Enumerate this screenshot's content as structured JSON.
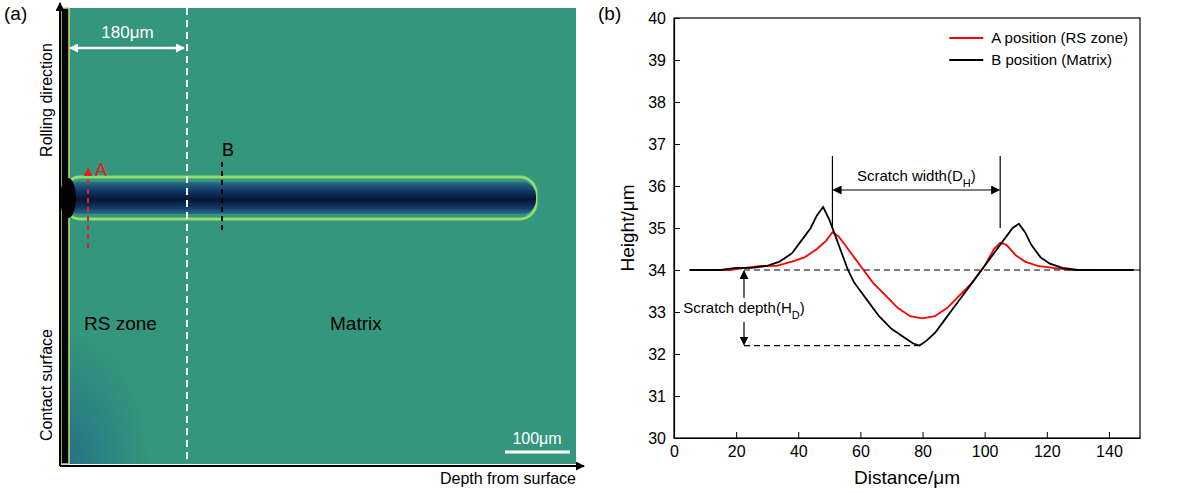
{
  "image_panel": {
    "panel_label": "(a)",
    "y_axis_labels": [
      "Rolling direction",
      "Contact surface"
    ],
    "x_axis_label": "Depth from surface",
    "dimension_label": "180μm",
    "regions": [
      "RS zone",
      "Matrix"
    ],
    "positions": [
      {
        "name": "A",
        "color": "#e02020"
      },
      {
        "name": "B",
        "color": "#000000"
      }
    ],
    "scale_bar": "100μm"
  },
  "chart_data": {
    "type": "line",
    "panel_label": "(b)",
    "x_label": "Distance/μm",
    "y_label": "Height/μm",
    "xlim": [
      0,
      150
    ],
    "xticks": [
      0,
      20,
      40,
      60,
      80,
      100,
      120,
      140
    ],
    "ylim": [
      30,
      40
    ],
    "yticks": [
      30,
      31,
      32,
      33,
      34,
      35,
      36,
      37,
      38,
      39,
      40
    ],
    "grid": false,
    "legend": "upper right",
    "series": [
      {
        "name": "A position (RS zone)",
        "color": "#ff0000",
        "x": [
          13,
          18,
          23,
          28,
          33,
          38,
          42,
          46,
          49,
          51,
          53,
          55,
          58,
          61,
          64,
          68,
          72,
          76,
          80,
          84,
          88,
          92,
          96,
          100,
          103,
          105,
          107,
          110,
          113,
          117,
          122,
          128,
          135,
          142,
          148
        ],
        "values": [
          34.0,
          34.0,
          34.05,
          34.1,
          34.1,
          34.2,
          34.3,
          34.5,
          34.7,
          34.9,
          34.8,
          34.6,
          34.3,
          34.0,
          33.7,
          33.4,
          33.1,
          32.9,
          32.85,
          32.9,
          33.1,
          33.4,
          33.7,
          34.1,
          34.5,
          34.65,
          34.6,
          34.35,
          34.2,
          34.1,
          34.05,
          34.0,
          34.0,
          34.0,
          34.0
        ]
      },
      {
        "name": "B position (Matrix)",
        "color": "#000000",
        "x": [
          5,
          10,
          15,
          20,
          25,
          30,
          34,
          38,
          41,
          44,
          46,
          48,
          50,
          52,
          54,
          56,
          58,
          60,
          63,
          66,
          70,
          74,
          77,
          79,
          81,
          84,
          87,
          90,
          93,
          96,
          99,
          102,
          105,
          107,
          109,
          111,
          113,
          115,
          118,
          121,
          125,
          130,
          135,
          140,
          145,
          148
        ],
        "values": [
          34.0,
          34.0,
          34.0,
          34.05,
          34.05,
          34.1,
          34.2,
          34.4,
          34.7,
          35.0,
          35.3,
          35.5,
          35.2,
          34.8,
          34.4,
          34.0,
          33.7,
          33.5,
          33.2,
          32.9,
          32.6,
          32.4,
          32.25,
          32.2,
          32.3,
          32.5,
          32.8,
          33.1,
          33.4,
          33.7,
          34.0,
          34.3,
          34.6,
          34.8,
          35.0,
          35.1,
          34.9,
          34.6,
          34.3,
          34.15,
          34.05,
          34.0,
          34.0,
          34.0,
          34.0,
          34.0
        ]
      }
    ],
    "annotations": [
      {
        "text": [
          "Scratch width(D",
          "H",
          ")"
        ],
        "x": [
          51,
          105
        ]
      },
      {
        "text": [
          "Scratch depth(H",
          "D",
          ")"
        ],
        "y": [
          34,
          32.2
        ]
      }
    ]
  }
}
